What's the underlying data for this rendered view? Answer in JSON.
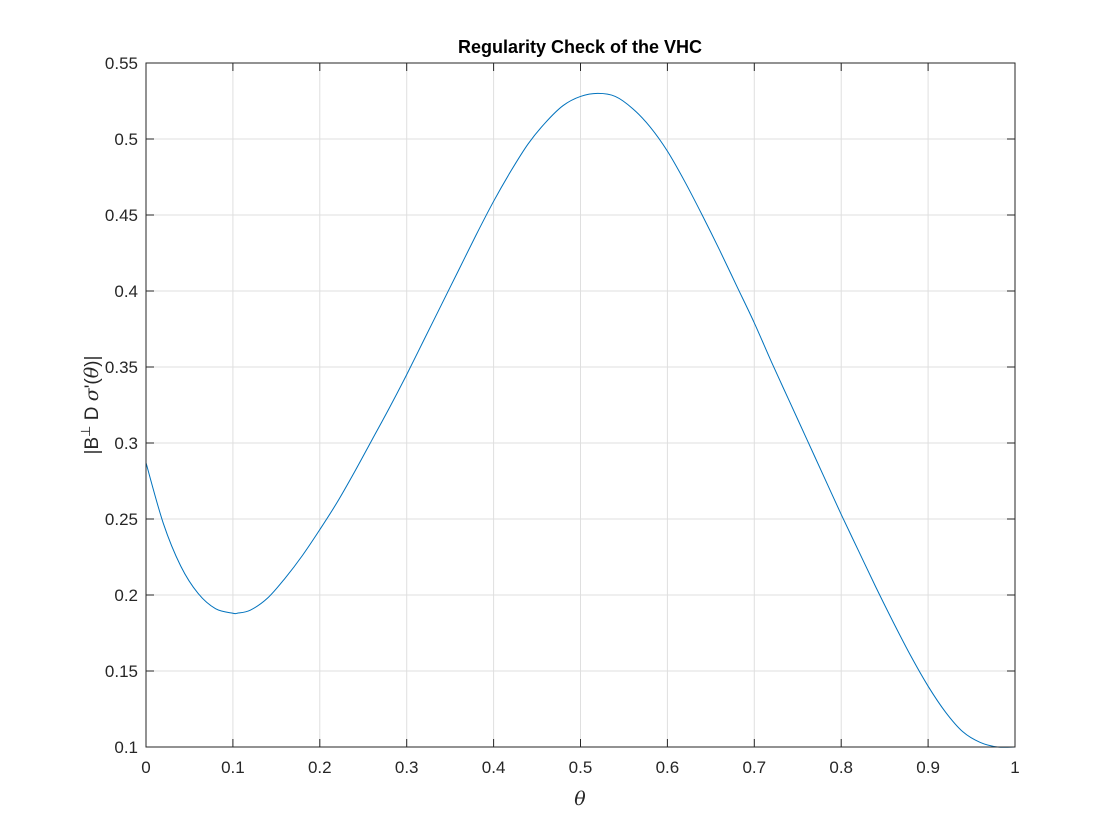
{
  "chart_data": {
    "type": "line",
    "title": "Regularity Check of the VHC",
    "xlabel": "θ",
    "ylabel": {
      "prefix": "|B",
      "superscript": "⊥",
      "middle": " D ",
      "sigma": "σ",
      "suffix_a": "'(",
      "theta": "θ",
      "suffix_b": ")|"
    },
    "xlim": [
      0,
      1
    ],
    "ylim": [
      0.1,
      0.55
    ],
    "grid": true,
    "xticks": [
      0,
      0.1,
      0.2,
      0.3,
      0.4,
      0.5,
      0.6,
      0.7,
      0.8,
      0.9,
      1
    ],
    "xtick_labels": [
      "0",
      "0.1",
      "0.2",
      "0.3",
      "0.4",
      "0.5",
      "0.6",
      "0.7",
      "0.8",
      "0.9",
      "1"
    ],
    "yticks": [
      0.1,
      0.15,
      0.2,
      0.25,
      0.3,
      0.35,
      0.4,
      0.45,
      0.5,
      0.55
    ],
    "ytick_labels": [
      "0.1",
      "0.15",
      "0.2",
      "0.25",
      "0.3",
      "0.35",
      "0.4",
      "0.45",
      "0.5",
      "0.55"
    ],
    "series": [
      {
        "color": "#0072BD",
        "x": [
          0,
          0.02,
          0.04,
          0.06,
          0.08,
          0.1,
          0.105,
          0.12,
          0.14,
          0.16,
          0.18,
          0.2,
          0.22,
          0.24,
          0.26,
          0.28,
          0.3,
          0.32,
          0.34,
          0.36,
          0.38,
          0.4,
          0.42,
          0.44,
          0.46,
          0.48,
          0.5,
          0.52,
          0.54,
          0.56,
          0.58,
          0.6,
          0.62,
          0.64,
          0.66,
          0.68,
          0.7,
          0.72,
          0.74,
          0.76,
          0.78,
          0.8,
          0.82,
          0.84,
          0.86,
          0.88,
          0.9,
          0.92,
          0.94,
          0.96,
          0.98,
          1.0
        ],
        "y": [
          0.287,
          0.247,
          0.219,
          0.201,
          0.191,
          0.188,
          0.188,
          0.19,
          0.198,
          0.211,
          0.226,
          0.243,
          0.261,
          0.281,
          0.302,
          0.323,
          0.345,
          0.368,
          0.391,
          0.414,
          0.437,
          0.459,
          0.479,
          0.497,
          0.511,
          0.522,
          0.528,
          0.53,
          0.528,
          0.52,
          0.508,
          0.492,
          0.472,
          0.45,
          0.427,
          0.403,
          0.379,
          0.353,
          0.328,
          0.303,
          0.278,
          0.253,
          0.229,
          0.205,
          0.182,
          0.16,
          0.14,
          0.123,
          0.11,
          0.103,
          0.1,
          0.1
        ]
      }
    ]
  }
}
